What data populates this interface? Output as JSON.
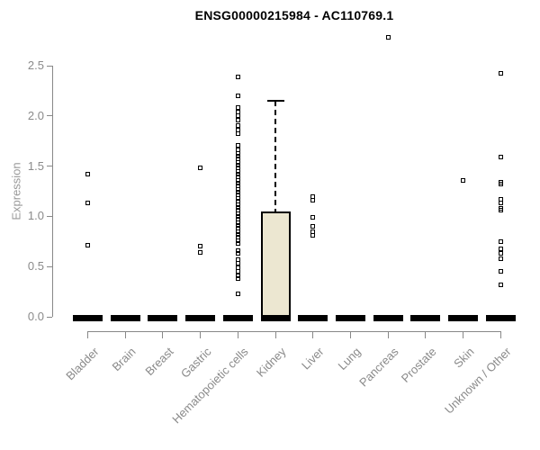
{
  "page_title": "ENSG00000215984 - AC110769.1",
  "chart_data": {
    "type": "boxplot",
    "title": "ENSG00000215984 - AC110769.1",
    "xlabel": "",
    "ylabel": "Expression",
    "yticks": [
      0.0,
      0.5,
      1.0,
      1.5,
      2.0,
      2.5
    ],
    "ylim": [
      -0.15,
      2.9
    ],
    "grid": false,
    "legend": false,
    "marker": "open-square",
    "colors": {
      "box_fill": "#ECE7D1",
      "box_border": "#000000",
      "point": "#000000",
      "axis": "#888888",
      "tick_label": "#8a8a8a",
      "title": "#000000"
    },
    "groups": [
      {
        "label": "Bladder",
        "q1": 0,
        "median": 0,
        "q3": 0,
        "whisker_low": 0,
        "whisker_high": 0,
        "outliers": [
          1.42,
          1.13,
          0.71
        ]
      },
      {
        "label": "Brain",
        "q1": 0,
        "median": 0,
        "q3": 0,
        "whisker_low": 0,
        "whisker_high": 0,
        "outliers": []
      },
      {
        "label": "Breast",
        "q1": 0,
        "median": 0,
        "q3": 0,
        "whisker_low": 0,
        "whisker_high": 0,
        "outliers": []
      },
      {
        "label": "Gastric",
        "q1": 0,
        "median": 0,
        "q3": 0,
        "whisker_low": 0,
        "whisker_high": 0,
        "outliers": [
          1.48,
          0.7,
          0.64
        ]
      },
      {
        "label": "Hematopoietic cells",
        "q1": 0,
        "median": 0,
        "q3": 0,
        "whisker_low": 0,
        "whisker_high": 0,
        "outliers": [
          2.39,
          2.2,
          2.08,
          2.04,
          2.0,
          1.96,
          1.9,
          1.86,
          1.82,
          1.71,
          1.66,
          1.63,
          1.6,
          1.57,
          1.54,
          1.51,
          1.48,
          1.45,
          1.42,
          1.39,
          1.36,
          1.33,
          1.3,
          1.27,
          1.24,
          1.21,
          1.18,
          1.15,
          1.12,
          1.09,
          1.06,
          1.03,
          1.0,
          0.97,
          0.94,
          0.91,
          0.88,
          0.85,
          0.82,
          0.79,
          0.76,
          0.73,
          0.66,
          0.63,
          0.57,
          0.53,
          0.49,
          0.45,
          0.41,
          0.38,
          0.23
        ]
      },
      {
        "label": "Kidney",
        "q1": 0,
        "median": 0,
        "q3": 1.05,
        "whisker_low": 0,
        "whisker_high": 2.15,
        "outliers": []
      },
      {
        "label": "Liver",
        "q1": 0,
        "median": 0,
        "q3": 0,
        "whisker_low": 0,
        "whisker_high": 0,
        "outliers": [
          1.2,
          1.16,
          0.99,
          0.9,
          0.85,
          0.81
        ]
      },
      {
        "label": "Lung",
        "q1": 0,
        "median": 0,
        "q3": 0,
        "whisker_low": 0,
        "whisker_high": 0,
        "outliers": []
      },
      {
        "label": "Pancreas",
        "q1": 0,
        "median": 0,
        "q3": 0,
        "whisker_low": 0,
        "whisker_high": 0,
        "outliers": [
          2.78
        ]
      },
      {
        "label": "Prostate",
        "q1": 0,
        "median": 0,
        "q3": 0,
        "whisker_low": 0,
        "whisker_high": 0,
        "outliers": []
      },
      {
        "label": "Skin",
        "q1": 0,
        "median": 0,
        "q3": 0,
        "whisker_low": 0,
        "whisker_high": 0,
        "outliers": [
          1.36
        ]
      },
      {
        "label": "Unknown / Other",
        "q1": 0,
        "median": 0,
        "q3": 0,
        "whisker_low": 0,
        "whisker_high": 0,
        "outliers": [
          2.42,
          1.59,
          1.34,
          1.32,
          1.17,
          1.13,
          1.08,
          1.06,
          0.75,
          0.68,
          0.63,
          0.58,
          0.45,
          0.32
        ]
      }
    ]
  }
}
